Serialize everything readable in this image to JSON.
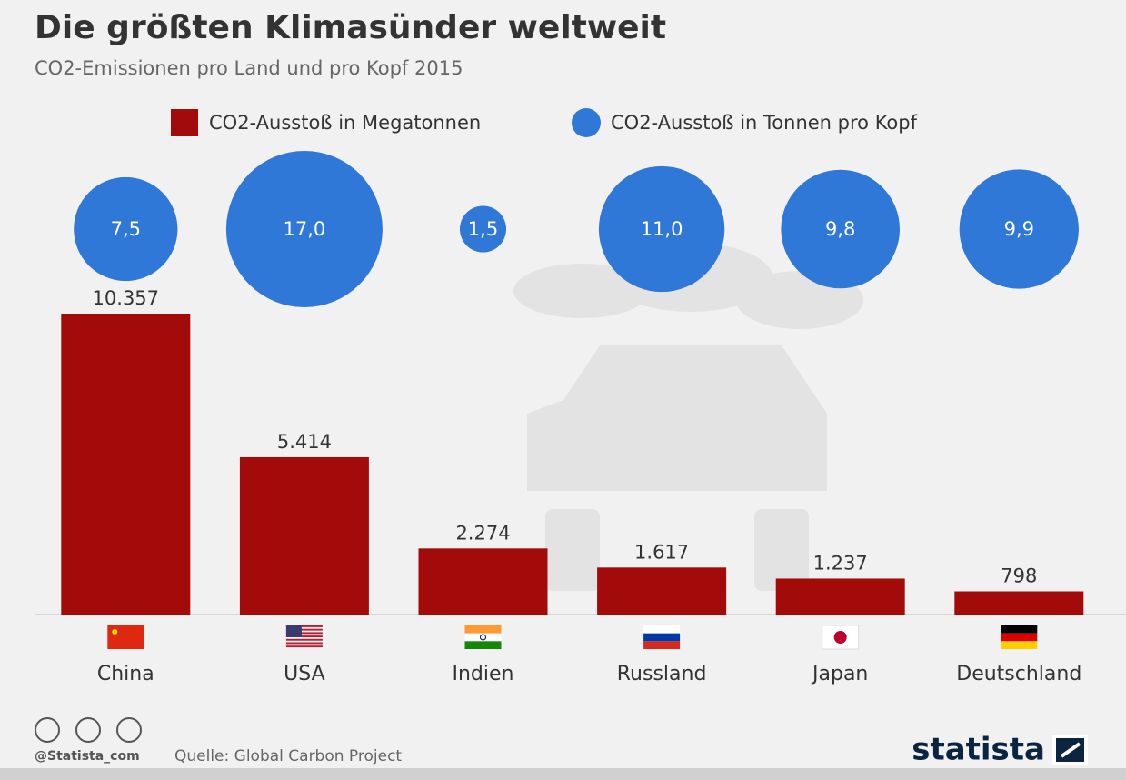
{
  "chart_data": {
    "type": "bar",
    "title": "Die größten Klimasünder weltweit",
    "subtitle": "CO2-Emissionen pro Land und pro Kopf 2015",
    "categories": [
      "China",
      "USA",
      "Indien",
      "Russland",
      "Japan",
      "Deutschland"
    ],
    "series": [
      {
        "name": "CO2-Ausstoß in Megatonnen",
        "color": "#a30b0b",
        "type": "bar",
        "values": [
          10357,
          5414,
          2274,
          1617,
          1237,
          798
        ],
        "value_labels": [
          "10.357",
          "5.414",
          "2.274",
          "1.617",
          "1.237",
          "798"
        ]
      },
      {
        "name": "CO2-Ausstoß in Tonnen pro Kopf",
        "color": "#2f78d8",
        "type": "bubble",
        "values": [
          7.5,
          17.0,
          1.5,
          11.0,
          9.8,
          9.9
        ],
        "value_labels": [
          "7,5",
          "17,0",
          "1,5",
          "11,0",
          "9,8",
          "9,9"
        ]
      }
    ],
    "credit": "@Statista_com",
    "source": "Quelle: Global Carbon Project",
    "brand": "statista"
  }
}
